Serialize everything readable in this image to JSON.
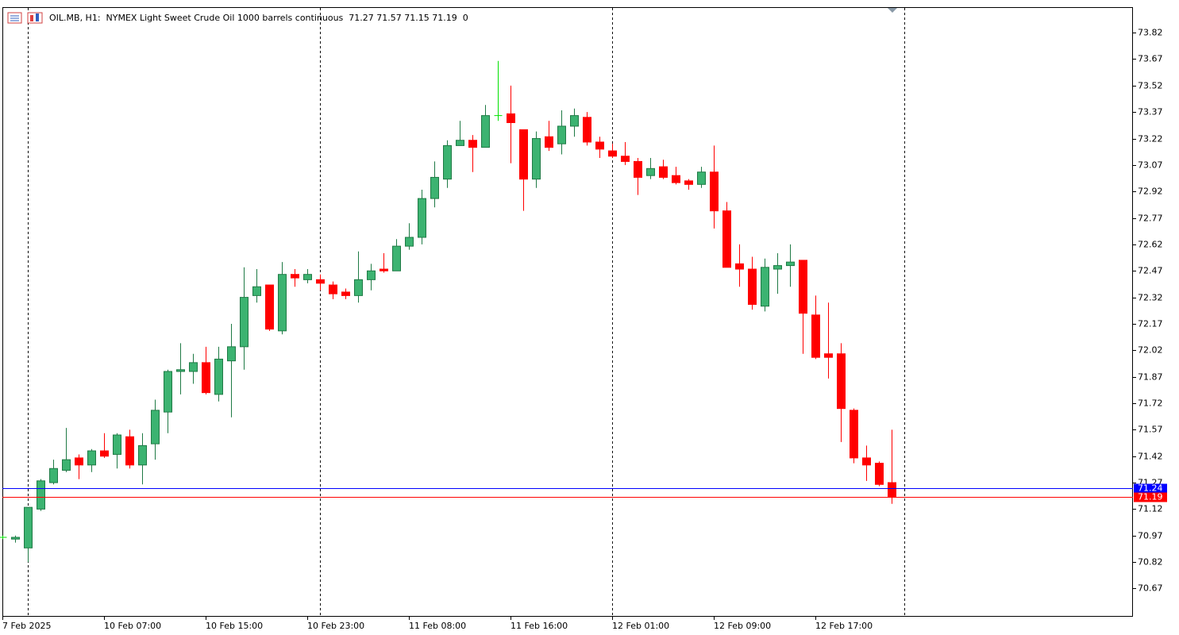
{
  "chart_data": {
    "type": "candlestick",
    "title": "OIL.MB, H1:  NYMEX Light Sweet Crude Oil 1000 barrels continuous  71.27 71.57 71.15 71.19  0",
    "categories": [
      "7 Feb 2025",
      null,
      null,
      null,
      null,
      null,
      null,
      null,
      "10 Feb 07:00",
      null,
      null,
      null,
      null,
      null,
      null,
      null,
      "10 Feb 15:00",
      null,
      null,
      null,
      null,
      null,
      null,
      null,
      "10 Feb 23:00",
      null,
      null,
      null,
      null,
      null,
      null,
      null,
      "11 Feb 08:00",
      null,
      null,
      null,
      null,
      null,
      null,
      null,
      "11 Feb 16:00",
      null,
      null,
      null,
      null,
      null,
      null,
      null,
      "12 Feb 01:00",
      null,
      null,
      null,
      null,
      null,
      null,
      null,
      "12 Feb 09:00",
      null,
      null,
      null,
      null,
      null,
      null,
      null,
      "12 Feb 17:00",
      null,
      null,
      null,
      null,
      null,
      null
    ],
    "open": [
      70.96,
      70.95,
      70.9,
      71.12,
      71.27,
      71.34,
      71.41,
      71.37,
      71.45,
      71.43,
      71.53,
      71.37,
      71.49,
      71.67,
      71.9,
      71.9,
      71.95,
      71.77,
      71.96,
      72.04,
      72.33,
      72.39,
      72.13,
      72.45,
      72.42,
      72.42,
      72.39,
      72.35,
      72.33,
      72.42,
      72.48,
      72.47,
      72.61,
      72.66,
      72.88,
      72.99,
      73.18,
      73.21,
      73.17,
      73.35,
      73.36,
      73.27,
      72.99,
      73.23,
      73.19,
      73.29,
      73.34,
      73.2,
      73.15,
      73.12,
      73.09,
      73.01,
      73.06,
      73.01,
      72.98,
      72.96,
      73.03,
      72.81,
      72.51,
      72.48,
      72.27,
      72.48,
      72.5,
      72.53,
      72.22,
      72.0,
      72.0,
      71.68,
      71.41,
      71.38,
      71.27
    ],
    "high": [
      70.97,
      70.97,
      71.13,
      71.29,
      71.4,
      71.58,
      71.43,
      71.46,
      71.55,
      71.55,
      71.57,
      71.55,
      71.74,
      71.91,
      72.06,
      72.0,
      72.04,
      72.04,
      72.17,
      72.49,
      72.48,
      72.39,
      72.52,
      72.48,
      72.48,
      72.45,
      72.41,
      72.37,
      72.58,
      72.51,
      72.57,
      72.65,
      72.74,
      72.93,
      73.09,
      73.21,
      73.32,
      73.24,
      73.41,
      73.66,
      73.52,
      73.27,
      73.26,
      73.32,
      73.38,
      73.39,
      73.37,
      73.23,
      73.19,
      73.2,
      73.11,
      73.11,
      73.1,
      73.06,
      72.99,
      73.06,
      73.18,
      72.86,
      72.62,
      72.55,
      72.54,
      72.57,
      72.62,
      72.53,
      72.33,
      72.29,
      72.06,
      71.69,
      71.48,
      71.39,
      71.57
    ],
    "low": [
      70.95,
      70.93,
      70.82,
      71.11,
      71.26,
      71.33,
      71.29,
      71.33,
      71.41,
      71.35,
      71.35,
      71.26,
      71.4,
      71.55,
      71.77,
      71.83,
      71.77,
      71.73,
      71.64,
      71.91,
      72.29,
      72.13,
      72.11,
      72.38,
      72.4,
      72.36,
      72.31,
      72.31,
      72.29,
      72.36,
      72.46,
      72.47,
      72.59,
      72.62,
      72.83,
      72.94,
      73.18,
      73.03,
      73.17,
      73.32,
      73.08,
      72.81,
      72.94,
      73.15,
      73.13,
      73.23,
      73.18,
      73.11,
      73.11,
      73.07,
      72.9,
      72.99,
      72.99,
      72.96,
      72.93,
      72.94,
      72.71,
      72.49,
      72.38,
      72.25,
      72.24,
      72.34,
      72.38,
      72.0,
      71.97,
      71.86,
      71.5,
      71.38,
      71.28,
      71.25,
      71.15
    ],
    "close": [
      70.96,
      70.96,
      71.13,
      71.28,
      71.35,
      71.4,
      71.37,
      71.45,
      71.42,
      71.54,
      71.37,
      71.48,
      71.68,
      71.9,
      71.91,
      71.95,
      71.78,
      71.97,
      72.04,
      72.32,
      72.38,
      72.14,
      72.45,
      72.43,
      72.45,
      72.4,
      72.34,
      72.33,
      72.42,
      72.47,
      72.47,
      72.61,
      72.66,
      72.88,
      73.0,
      73.18,
      73.21,
      73.17,
      73.35,
      73.35,
      73.31,
      72.99,
      73.22,
      73.17,
      73.29,
      73.35,
      73.2,
      73.16,
      73.12,
      73.09,
      73.0,
      73.05,
      73.0,
      72.97,
      72.96,
      73.03,
      72.81,
      72.49,
      72.48,
      72.28,
      72.49,
      72.5,
      72.52,
      72.23,
      71.98,
      71.98,
      71.69,
      71.41,
      71.37,
      71.26,
      71.19
    ],
    "up_color": "#3cb371",
    "up_outline": "#1f7a45",
    "down_color": "#ff0000",
    "doji_color": "#00e000",
    "ylim": [
      70.51,
      73.96
    ],
    "yticks": [
      70.67,
      70.82,
      70.97,
      71.12,
      71.27,
      71.42,
      71.57,
      71.72,
      71.87,
      72.02,
      72.17,
      72.32,
      72.47,
      72.62,
      72.77,
      72.92,
      73.07,
      73.22,
      73.37,
      73.52,
      73.67,
      73.82
    ],
    "grid": false,
    "ask": 71.24,
    "ask_color": "#0000ff",
    "bid": 71.19,
    "bid_color": "#ff0000"
  }
}
